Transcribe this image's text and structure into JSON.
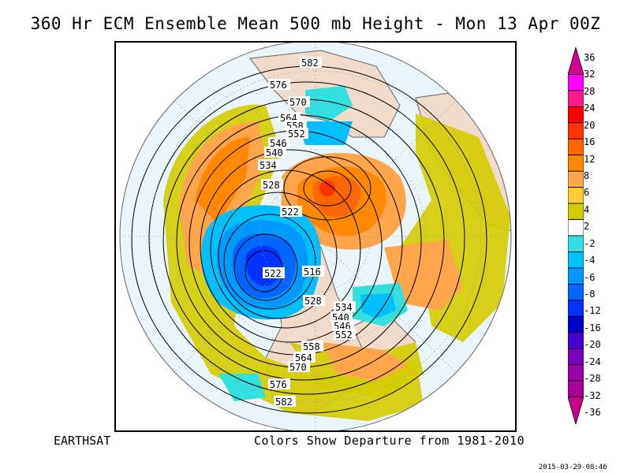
{
  "title": "360 Hr ECM Ensemble Mean 500 mb Height - Mon 13 Apr 00Z",
  "footer": {
    "left": "EARTHSAT",
    "right": "Colors Show Departure from 1981-2010",
    "timestamp": "2015-03-29-08:46"
  },
  "colorbar": {
    "labels": [
      "36",
      "32",
      "28",
      "24",
      "20",
      "16",
      "12",
      "8",
      "6",
      "4",
      "2",
      "-2",
      "-4",
      "-6",
      "-8",
      "-12",
      "-16",
      "-20",
      "-24",
      "-28",
      "-32",
      "-36"
    ],
    "colors": [
      "#d60091",
      "#ff00ff",
      "#ff1a8c",
      "#ff0000",
      "#ff3300",
      "#ff6600",
      "#ff8800",
      "#ffa64d",
      "#ffcc33",
      "#d4cc00",
      "#ffffff",
      "#33e0e0",
      "#00bfff",
      "#0099ff",
      "#0066ff",
      "#0033ff",
      "#0000cc",
      "#4400cc",
      "#7700bb",
      "#9900aa",
      "#aa0099",
      "#cc0088"
    ]
  },
  "contour_labels": {
    "top": [
      "582",
      "576",
      "570",
      "564",
      "558",
      "552",
      "546",
      "540",
      "534",
      "528",
      "522"
    ],
    "center": [
      "522",
      "516"
    ],
    "bottom": [
      "528",
      "534",
      "540",
      "546",
      "552",
      "558",
      "564",
      "570",
      "576",
      "582"
    ]
  }
}
